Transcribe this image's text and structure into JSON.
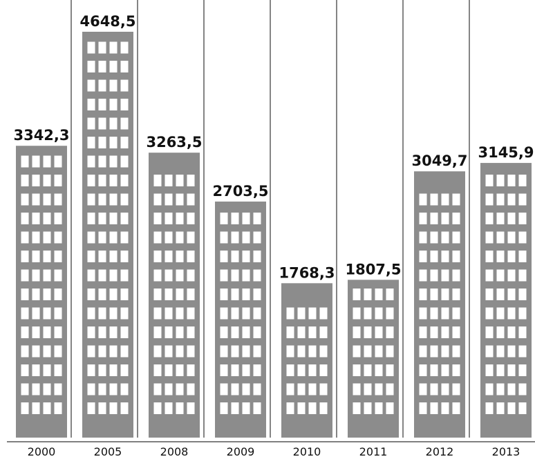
{
  "chart_data": {
    "type": "bar",
    "title": "",
    "xlabel": "",
    "ylabel": "",
    "categories": [
      "2000",
      "2005",
      "2008",
      "2009",
      "2010",
      "2011",
      "2012",
      "2013"
    ],
    "values": [
      3342.3,
      4648.5,
      3263.5,
      2703.5,
      1768.3,
      1807.5,
      3049.7,
      3145.9
    ],
    "value_labels": [
      "3342,3",
      "4648,5",
      "3263,5",
      "2703,5",
      "1768,3",
      "1807,5",
      "3049,7",
      "3145,9"
    ],
    "ylim": [
      0,
      4648.5
    ],
    "grid": false,
    "legend": "none",
    "bar_style": "building",
    "colors": {
      "bar": "#8c8c8c",
      "window": "#ffffff",
      "divider": "#333333",
      "baseline": "#555555",
      "text": "#111111"
    }
  }
}
